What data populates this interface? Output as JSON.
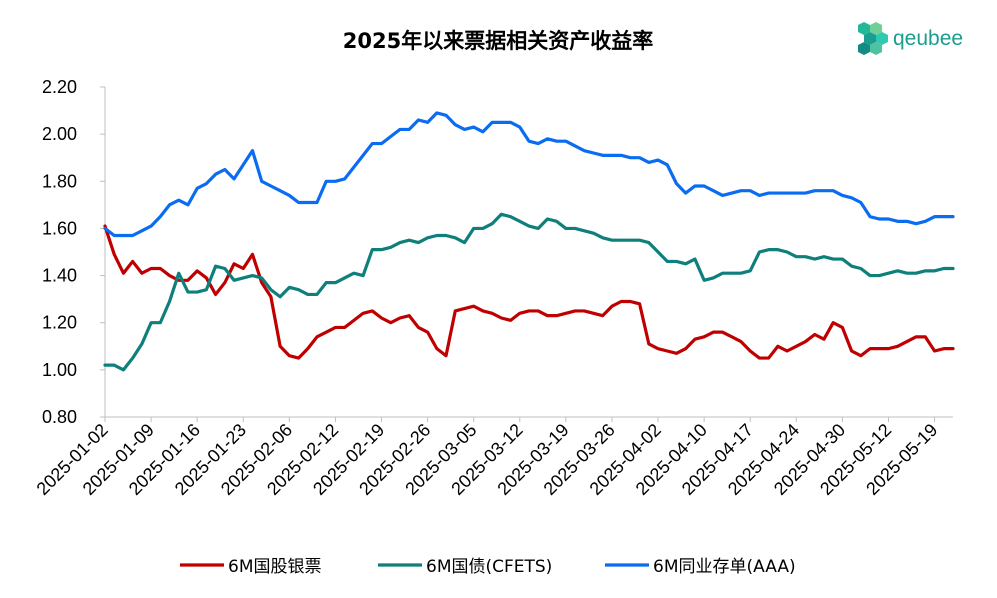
{
  "brand": {
    "name": "qeubee",
    "color": "#1a9e8f"
  },
  "chart_data": {
    "type": "line",
    "title": "2025年以来票据相关资产收益率",
    "xlabel": "",
    "ylabel": "",
    "ylim": [
      0.8,
      2.2
    ],
    "yticks": [
      "2.20",
      "2.00",
      "1.80",
      "1.60",
      "1.40",
      "1.20",
      "1.00",
      "0.80"
    ],
    "ytick_values": [
      2.2,
      2.0,
      1.8,
      1.6,
      1.4,
      1.2,
      1.0,
      0.8
    ],
    "xticks": [
      "2025-01-02",
      "2025-01-09",
      "2025-01-16",
      "2025-01-23",
      "2025-02-06",
      "2025-02-12",
      "2025-02-19",
      "2025-02-26",
      "2025-03-05",
      "2025-03-12",
      "2025-03-19",
      "2025-03-26",
      "2025-04-02",
      "2025-04-10",
      "2025-04-17",
      "2025-04-24",
      "2025-04-30",
      "2025-05-12",
      "2025-05-19"
    ],
    "xtick_index": [
      0,
      5,
      10,
      15,
      20,
      25,
      30,
      35,
      40,
      45,
      50,
      55,
      60,
      65,
      70,
      75,
      80,
      85,
      90
    ],
    "n_points": 93,
    "grid": false,
    "legend_position": "bottom",
    "series": [
      {
        "name": "6M国股银票",
        "color": "#c00000",
        "values": [
          1.61,
          1.49,
          1.41,
          1.46,
          1.41,
          1.43,
          1.43,
          1.4,
          1.38,
          1.38,
          1.42,
          1.39,
          1.32,
          1.37,
          1.45,
          1.43,
          1.49,
          1.37,
          1.31,
          1.1,
          1.06,
          1.05,
          1.09,
          1.14,
          1.16,
          1.18,
          1.18,
          1.21,
          1.24,
          1.25,
          1.22,
          1.2,
          1.22,
          1.23,
          1.18,
          1.16,
          1.09,
          1.06,
          1.25,
          1.26,
          1.27,
          1.25,
          1.24,
          1.22,
          1.21,
          1.24,
          1.25,
          1.25,
          1.23,
          1.23,
          1.24,
          1.25,
          1.25,
          1.24,
          1.23,
          1.27,
          1.29,
          1.29,
          1.28,
          1.11,
          1.09,
          1.08,
          1.07,
          1.09,
          1.13,
          1.14,
          1.16,
          1.16,
          1.14,
          1.12,
          1.08,
          1.05,
          1.05,
          1.1,
          1.08,
          1.1,
          1.12,
          1.15,
          1.13,
          1.2,
          1.18,
          1.08,
          1.06,
          1.09,
          1.09,
          1.09,
          1.1,
          1.12,
          1.14,
          1.14,
          1.08,
          1.09,
          1.09
        ]
      },
      {
        "name": "6M国债(CFETS)",
        "color": "#0e7f7b",
        "values": [
          1.02,
          1.02,
          1.0,
          1.05,
          1.11,
          1.2,
          1.2,
          1.29,
          1.41,
          1.33,
          1.33,
          1.34,
          1.44,
          1.43,
          1.38,
          1.39,
          1.4,
          1.39,
          1.34,
          1.31,
          1.35,
          1.34,
          1.32,
          1.32,
          1.37,
          1.37,
          1.39,
          1.41,
          1.4,
          1.51,
          1.51,
          1.52,
          1.54,
          1.55,
          1.54,
          1.56,
          1.57,
          1.57,
          1.56,
          1.54,
          1.6,
          1.6,
          1.62,
          1.66,
          1.65,
          1.63,
          1.61,
          1.6,
          1.64,
          1.63,
          1.6,
          1.6,
          1.59,
          1.58,
          1.56,
          1.55,
          1.55,
          1.55,
          1.55,
          1.54,
          1.5,
          1.46,
          1.46,
          1.45,
          1.47,
          1.38,
          1.39,
          1.41,
          1.41,
          1.41,
          1.42,
          1.5,
          1.51,
          1.51,
          1.5,
          1.48,
          1.48,
          1.47,
          1.48,
          1.47,
          1.47,
          1.44,
          1.43,
          1.4,
          1.4,
          1.41,
          1.42,
          1.41,
          1.41,
          1.42,
          1.42,
          1.43,
          1.43
        ]
      },
      {
        "name": "6M同业存单(AAA)",
        "color": "#0a6cf0",
        "values": [
          1.6,
          1.57,
          1.57,
          1.57,
          1.59,
          1.61,
          1.65,
          1.7,
          1.72,
          1.7,
          1.77,
          1.79,
          1.83,
          1.85,
          1.81,
          1.87,
          1.93,
          1.8,
          1.78,
          1.76,
          1.74,
          1.71,
          1.71,
          1.71,
          1.8,
          1.8,
          1.81,
          1.86,
          1.91,
          1.96,
          1.96,
          1.99,
          2.02,
          2.02,
          2.06,
          2.05,
          2.09,
          2.08,
          2.04,
          2.02,
          2.03,
          2.01,
          2.05,
          2.05,
          2.05,
          2.03,
          1.97,
          1.96,
          1.98,
          1.97,
          1.97,
          1.95,
          1.93,
          1.92,
          1.91,
          1.91,
          1.91,
          1.9,
          1.9,
          1.88,
          1.89,
          1.87,
          1.79,
          1.75,
          1.78,
          1.78,
          1.76,
          1.74,
          1.75,
          1.76,
          1.76,
          1.74,
          1.75,
          1.75,
          1.75,
          1.75,
          1.75,
          1.76,
          1.76,
          1.76,
          1.74,
          1.73,
          1.71,
          1.65,
          1.64,
          1.64,
          1.63,
          1.63,
          1.62,
          1.63,
          1.65,
          1.65,
          1.65
        ]
      }
    ]
  }
}
